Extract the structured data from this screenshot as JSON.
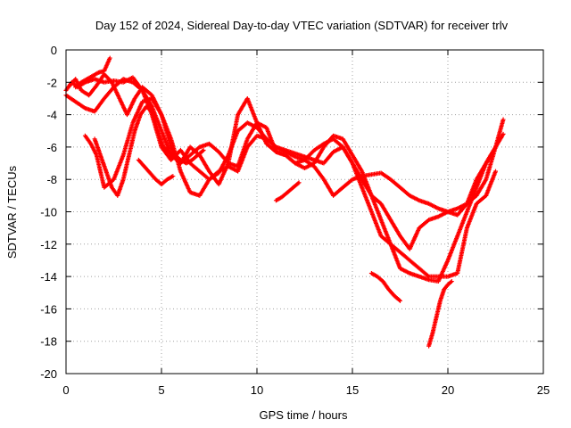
{
  "chart_data": {
    "type": "scatter",
    "title": "Day 152 of 2024, Sidereal Day-to-day VTEC variation (SDTVAR) for receiver trlv",
    "xlabel": "GPS time / hours",
    "ylabel": "SDTVAR / TECUs",
    "xlim": [
      0,
      25
    ],
    "ylim": [
      -20,
      0
    ],
    "xticks": [
      "0",
      "5",
      "10",
      "15",
      "20",
      "25"
    ],
    "yticks": [
      "0",
      "-2",
      "-4",
      "-6",
      "-8",
      "-10",
      "-12",
      "-14",
      "-16",
      "-18",
      "-20"
    ],
    "grid": true,
    "marker": "+",
    "color": "#ff0000",
    "series": [
      {
        "x": [
          0.0,
          0.3,
          0.6,
          1.0,
          1.5,
          2.0,
          2.5,
          3.0,
          3.5,
          4.0,
          4.5,
          5.0,
          5.5,
          6.0,
          6.5,
          7.0,
          7.5,
          8.0,
          8.5,
          9.0,
          9.5,
          10.0,
          10.5,
          11.0,
          11.5,
          12.0,
          12.5,
          13.0,
          13.5,
          14.0,
          14.5,
          15.0,
          15.5,
          16.0,
          16.5,
          17.0,
          17.5,
          18.0,
          18.5,
          19.0,
          19.5,
          20.0,
          20.5,
          21.0,
          21.5,
          22.0,
          22.5,
          22.9
        ],
        "y": [
          -2.5,
          -2.0,
          -2.3,
          -2.0,
          -1.8,
          -2.0,
          -1.9,
          -2.0,
          -1.7,
          -2.5,
          -4.0,
          -6.0,
          -6.8,
          -6.2,
          -7.0,
          -7.5,
          -8.0,
          -7.6,
          -6.5,
          -5.0,
          -4.5,
          -4.8,
          -5.5,
          -6.0,
          -6.3,
          -6.6,
          -6.8,
          -7.2,
          -8.0,
          -9.0,
          -8.5,
          -8.0,
          -7.8,
          -7.7,
          -7.6,
          -8.0,
          -8.5,
          -9.0,
          -9.3,
          -9.5,
          -9.8,
          -10.0,
          -10.2,
          -9.5,
          -8.0,
          -7.0,
          -6.0,
          -5.2
        ]
      },
      {
        "x": [
          0.0,
          0.5,
          1.0,
          1.5,
          2.0,
          2.5,
          3.0,
          3.5,
          4.0,
          4.5,
          5.0,
          5.5,
          6.0,
          6.5,
          7.0,
          7.5,
          8.0,
          8.5,
          9.0,
          9.5,
          10.0,
          10.5,
          11.0,
          11.5,
          12.0,
          12.5,
          13.0,
          13.5,
          14.0,
          14.5,
          15.0,
          15.5,
          16.0,
          16.5,
          17.0,
          17.5,
          18.0,
          18.5,
          19.0,
          19.5,
          20.0,
          20.5,
          21.0,
          21.5,
          22.0,
          22.5,
          22.9
        ],
        "y": [
          -2.8,
          -3.2,
          -3.6,
          -3.8,
          -3.0,
          -2.3,
          -1.8,
          -2.0,
          -2.5,
          -3.5,
          -5.0,
          -6.5,
          -7.0,
          -6.0,
          -6.5,
          -7.5,
          -8.3,
          -7.0,
          -4.0,
          -3.0,
          -4.5,
          -5.8,
          -6.3,
          -6.5,
          -7.0,
          -6.8,
          -6.2,
          -5.8,
          -5.5,
          -6.0,
          -7.0,
          -8.0,
          -9.0,
          -9.5,
          -10.5,
          -11.5,
          -12.3,
          -11.0,
          -10.5,
          -10.3,
          -10.0,
          -9.8,
          -9.5,
          -9.0,
          -8.0,
          -6.0,
          -4.3
        ]
      },
      {
        "x": [
          0.2,
          0.5,
          0.8,
          1.2,
          1.6,
          2.0,
          2.4,
          2.8,
          3.2,
          3.6,
          4.0,
          4.5,
          5.0,
          5.5,
          6.0,
          6.5,
          7.0,
          7.5,
          8.0,
          8.5,
          9.0,
          9.5,
          10.0,
          10.5,
          11.0,
          11.5,
          12.0,
          12.5,
          13.0,
          13.5,
          14.0,
          14.5,
          15.0,
          15.5,
          16.0,
          16.5,
          17.0,
          17.5,
          18.0,
          18.5,
          19.0,
          19.5,
          20.0,
          20.5,
          21.0,
          21.5,
          22.0,
          22.5
        ],
        "y": [
          -2.2,
          -1.8,
          -2.5,
          -2.8,
          -2.2,
          -1.5,
          -2.0,
          -3.0,
          -4.0,
          -3.0,
          -2.3,
          -2.8,
          -4.0,
          -6.0,
          -7.0,
          -6.5,
          -6.0,
          -5.8,
          -6.3,
          -7.0,
          -7.2,
          -5.5,
          -4.5,
          -4.8,
          -6.3,
          -6.5,
          -7.0,
          -7.3,
          -7.0,
          -6.0,
          -5.3,
          -5.5,
          -6.5,
          -7.5,
          -9.0,
          -10.5,
          -12.0,
          -13.5,
          -13.8,
          -14.0,
          -14.2,
          -14.3,
          -13.0,
          -11.5,
          -10.0,
          -8.5,
          -7.0,
          -6.0
        ]
      },
      {
        "x": [
          1.0,
          1.3,
          1.6,
          2.0,
          2.5,
          3.0,
          3.5,
          4.0,
          4.5,
          5.0,
          5.5,
          6.0,
          6.5,
          7.0,
          7.5,
          8.0,
          8.5,
          9.0,
          9.5,
          10.0,
          10.5,
          11.0,
          11.5,
          12.0,
          12.5,
          13.0,
          13.5,
          14.0,
          14.5,
          15.0,
          15.5,
          16.0,
          16.5,
          17.0,
          17.5,
          18.0,
          18.5,
          19.0,
          19.5,
          20.0,
          20.5,
          21.0,
          21.5,
          22.0,
          22.5
        ],
        "y": [
          -5.3,
          -5.8,
          -6.5,
          -8.5,
          -8.0,
          -6.5,
          -4.5,
          -3.2,
          -3.0,
          -4.0,
          -5.5,
          -7.5,
          -8.8,
          -9.0,
          -8.0,
          -7.5,
          -7.2,
          -7.5,
          -6.0,
          -5.3,
          -5.5,
          -6.0,
          -6.2,
          -6.4,
          -6.6,
          -6.8,
          -7.0,
          -6.3,
          -6.0,
          -7.0,
          -8.5,
          -10.0,
          -11.5,
          -12.0,
          -12.5,
          -13.0,
          -13.5,
          -14.0,
          -14.0,
          -14.0,
          -13.8,
          -11.0,
          -9.5,
          -9.0,
          -7.5
        ]
      },
      {
        "x": [
          1.5,
          1.8,
          2.1,
          2.4,
          2.7,
          3.0,
          3.3,
          3.6,
          3.9,
          4.2,
          4.5,
          4.8,
          5.1,
          5.4,
          5.7,
          6.0,
          6.3,
          6.6,
          6.9,
          7.2
        ],
        "y": [
          -5.5,
          -6.5,
          -7.5,
          -8.5,
          -9.0,
          -8.0,
          -6.5,
          -5.0,
          -4.0,
          -3.5,
          -3.8,
          -5.0,
          -6.0,
          -6.3,
          -6.5,
          -6.8,
          -7.0,
          -6.8,
          -6.5,
          -6.2
        ]
      },
      {
        "x": [
          0.5,
          0.8,
          1.1,
          1.4,
          1.7,
          2.0,
          2.3
        ],
        "y": [
          -2.3,
          -2.0,
          -1.8,
          -1.6,
          -1.4,
          -1.3,
          -0.5
        ]
      },
      {
        "x": [
          3.8,
          4.1,
          4.4,
          4.7,
          5.0,
          5.3,
          5.6
        ],
        "y": [
          -6.8,
          -7.2,
          -7.6,
          -8.0,
          -8.3,
          -8.0,
          -7.8
        ]
      },
      {
        "x": [
          11.0,
          11.3,
          11.6,
          11.9,
          12.2
        ],
        "y": [
          -9.3,
          -9.1,
          -8.8,
          -8.5,
          -8.2
        ]
      },
      {
        "x": [
          16.0,
          16.3,
          16.6,
          16.9,
          17.2,
          17.5
        ],
        "y": [
          -13.8,
          -14.0,
          -14.3,
          -14.8,
          -15.2,
          -15.5
        ]
      },
      {
        "x": [
          19.0,
          19.2,
          19.4,
          19.6,
          19.8,
          20.0,
          20.2
        ],
        "y": [
          -18.3,
          -17.5,
          -16.5,
          -15.5,
          -14.8,
          -14.5,
          -14.3
        ]
      }
    ]
  }
}
